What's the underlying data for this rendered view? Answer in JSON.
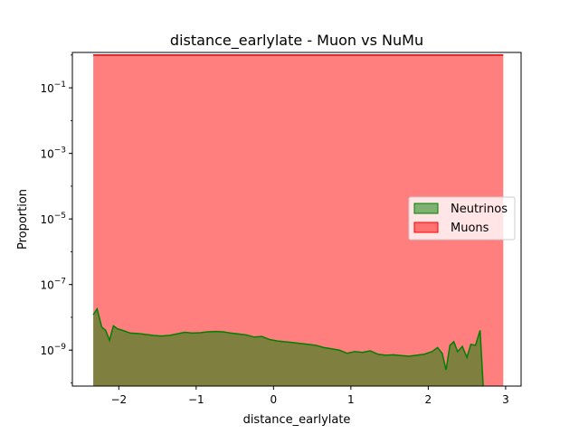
{
  "chart_data": {
    "type": "area",
    "title": "distance_earlylate - Muon vs NuMu",
    "xlabel": "distance_earlylate",
    "ylabel": "Proportion",
    "yscale": "log",
    "xlim": [
      -2.6,
      3.2
    ],
    "ylim": [
      8e-11,
      1.2
    ],
    "xticks": [
      {
        "value": -2,
        "label": "−2"
      },
      {
        "value": -1,
        "label": "−1"
      },
      {
        "value": 0,
        "label": "0"
      },
      {
        "value": 1,
        "label": "1"
      },
      {
        "value": 2,
        "label": "2"
      },
      {
        "value": 3,
        "label": "3"
      }
    ],
    "yticks": [
      {
        "value": 1e-09,
        "base": "10",
        "exp": "−9"
      },
      {
        "value": 1e-07,
        "base": "10",
        "exp": "−7"
      },
      {
        "value": 1e-05,
        "base": "10",
        "exp": "−5"
      },
      {
        "value": 0.001,
        "base": "10",
        "exp": "−3"
      },
      {
        "value": 0.1,
        "base": "10",
        "exp": "−1"
      }
    ],
    "legend_position": "center-right",
    "series": [
      {
        "name": "Neutrinos",
        "fill": "#008000",
        "line": "#008000",
        "fill_opacity": 0.5,
        "x": [
          -2.33,
          -2.28,
          -2.22,
          -2.17,
          -2.12,
          -2.07,
          -2.02,
          -1.95,
          -1.85,
          -1.75,
          -1.65,
          -1.55,
          -1.45,
          -1.35,
          -1.25,
          -1.15,
          -1.05,
          -0.95,
          -0.85,
          -0.75,
          -0.65,
          -0.55,
          -0.45,
          -0.35,
          -0.25,
          -0.15,
          -0.05,
          0.05,
          0.15,
          0.25,
          0.35,
          0.45,
          0.55,
          0.65,
          0.75,
          0.85,
          0.95,
          1.05,
          1.15,
          1.25,
          1.35,
          1.45,
          1.55,
          1.65,
          1.75,
          1.85,
          1.95,
          2.05,
          2.12,
          2.18,
          2.23,
          2.28,
          2.33,
          2.38,
          2.44,
          2.5,
          2.55,
          2.61,
          2.67,
          2.71
        ],
        "y": [
          1.2e-08,
          1.8e-08,
          5e-09,
          4e-09,
          2e-09,
          5.5e-09,
          4.5e-09,
          4e-09,
          3.3e-09,
          3.2e-09,
          3e-09,
          2.8e-09,
          2.7e-09,
          2.8e-09,
          3.1e-09,
          3.5e-09,
          3.3e-09,
          3.4e-09,
          3.6e-09,
          3.7e-09,
          3.6e-09,
          3.3e-09,
          3.1e-09,
          2.9e-09,
          2.5e-09,
          2.6e-09,
          2.1e-09,
          1.9e-09,
          1.8e-09,
          1.7e-09,
          1.6e-09,
          1.5e-09,
          1.4e-09,
          1.2e-09,
          1.1e-09,
          1e-09,
          8e-10,
          9e-10,
          8.5e-10,
          9.5e-10,
          7.5e-10,
          7e-10,
          7.2e-10,
          6.8e-10,
          6.5e-10,
          7e-10,
          7.5e-10,
          9e-10,
          1.2e-09,
          8e-10,
          2.5e-10,
          1.4e-09,
          1.8e-09,
          9e-10,
          1.3e-09,
          6e-10,
          1.5e-09,
          1.4e-09,
          4e-09,
          8e-11
        ]
      },
      {
        "name": "Muons",
        "fill": "#ff0000",
        "line": "#d40000",
        "fill_opacity": 0.5,
        "x": [
          -2.33,
          2.97
        ],
        "y": [
          1.0,
          1.0
        ]
      }
    ]
  }
}
